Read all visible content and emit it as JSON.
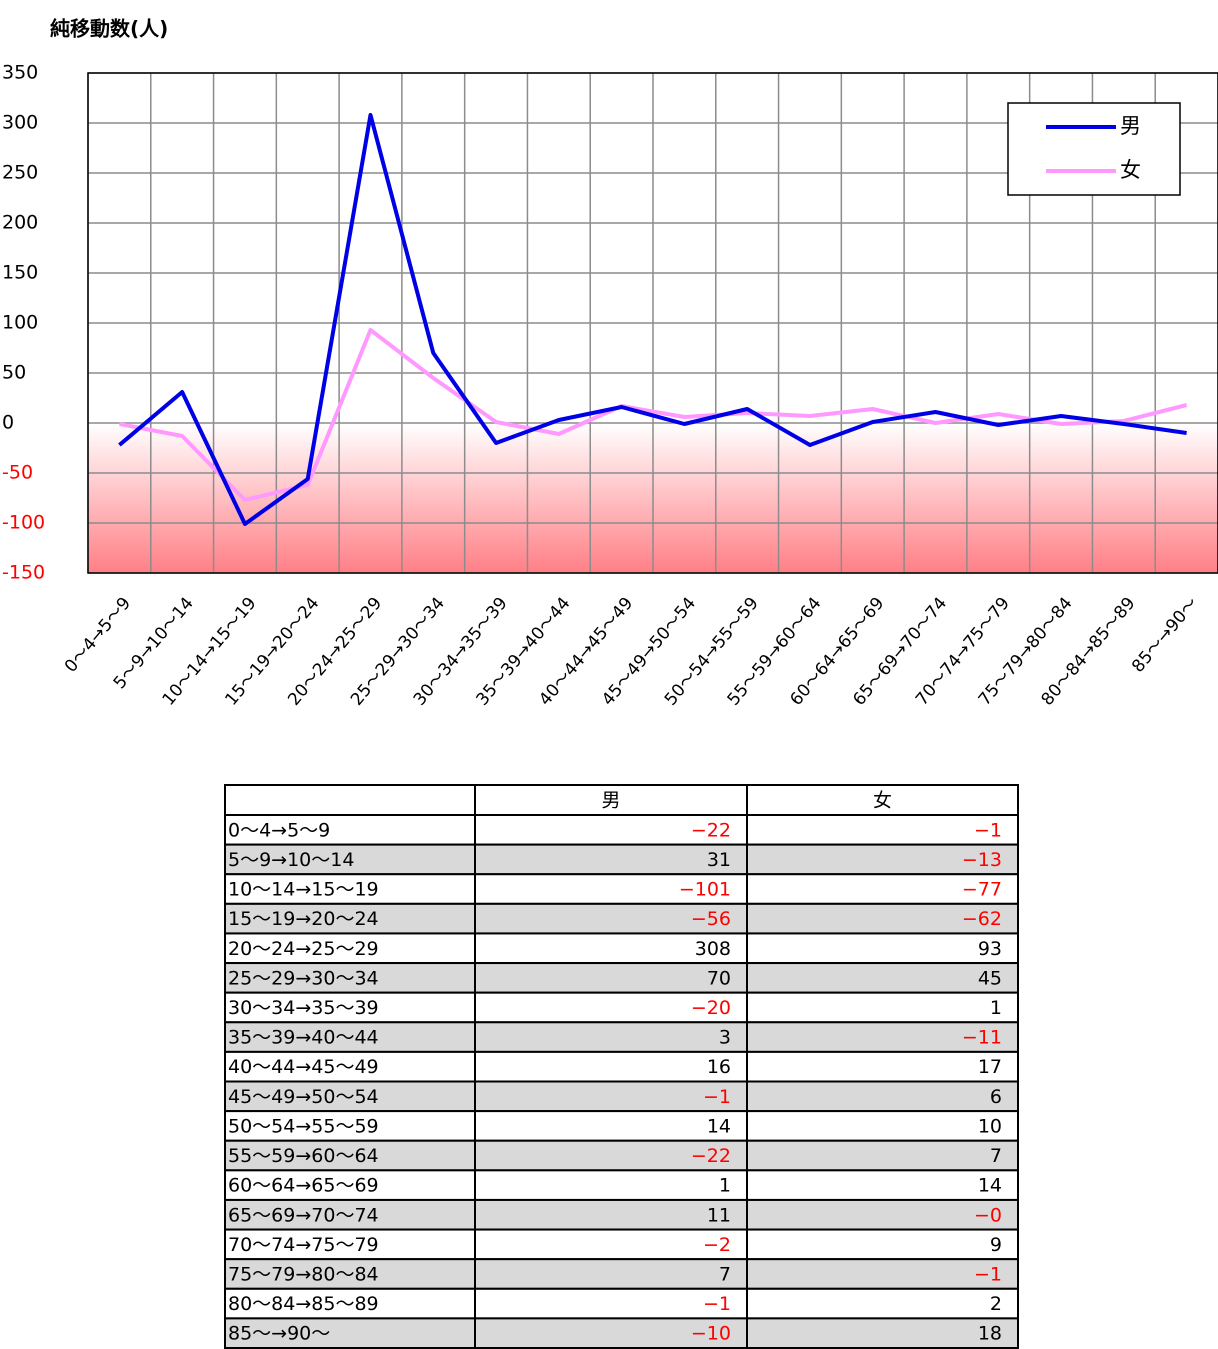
{
  "chart_data": {
    "type": "line",
    "title": "純移動数(人)",
    "categories": [
      "0～4→5～9",
      "5～9→10～14",
      "10～14→15～19",
      "15～19→20～24",
      "20～24→25～29",
      "25～29→30～34",
      "30～34→35～39",
      "35～39→40～44",
      "40～44→45～49",
      "45～49→50～54",
      "50～54→55～59",
      "55～59→60～64",
      "60～64→65～69",
      "65～69→70～74",
      "70～74→75～79",
      "75～79→80～84",
      "80～84→85～89",
      "85～→90～"
    ],
    "series": [
      {
        "name": "男",
        "color": "#0000e6",
        "values": [
          -22,
          31,
          -101,
          -56,
          308,
          70,
          -20,
          3,
          16,
          -1,
          14,
          -22,
          1,
          11,
          -2,
          7,
          -1,
          -10
        ],
        "value_labels": [
          "−22",
          "31",
          "−101",
          "−56",
          "308",
          "70",
          "−20",
          "3",
          "16",
          "−1",
          "14",
          "−22",
          "1",
          "11",
          "−2",
          "7",
          "−1",
          "−10"
        ]
      },
      {
        "name": "女",
        "color": "#ff99ff",
        "values": [
          -1,
          -13,
          -77,
          -62,
          93,
          45,
          1,
          -11,
          17,
          6,
          10,
          7,
          14,
          0,
          9,
          -1,
          2,
          18
        ],
        "value_labels": [
          "−1",
          "−13",
          "−77",
          "−62",
          "93",
          "45",
          "1",
          "−11",
          "17",
          "6",
          "10",
          "7",
          "14",
          "−0",
          "9",
          "−1",
          "2",
          "18"
        ]
      }
    ],
    "ylim": [
      -150,
      350
    ],
    "yticks": [
      -150,
      -100,
      -50,
      0,
      50,
      100,
      150,
      200,
      250,
      300,
      350
    ],
    "grid": true,
    "legend": "upper right"
  }
}
